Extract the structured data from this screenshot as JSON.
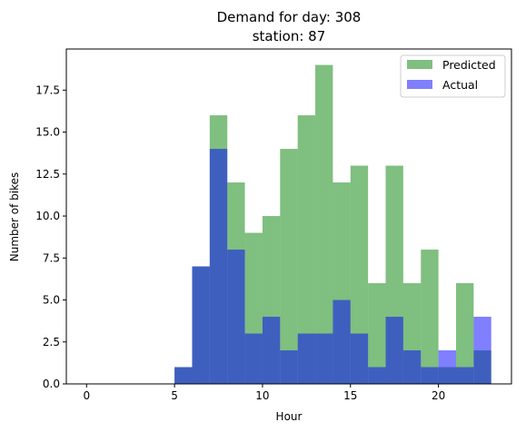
{
  "chart_data": {
    "type": "bar",
    "title_lines": [
      "Demand for day: 308",
      "station: 87"
    ],
    "xlabel": "Hour",
    "ylabel": "Number of bikes",
    "xlim": [
      -1.15,
      24.15
    ],
    "ylim": [
      0,
      19.95
    ],
    "xticks": [
      0,
      5,
      10,
      15,
      20
    ],
    "yticks": [
      0.0,
      2.5,
      5.0,
      7.5,
      10.0,
      12.5,
      15.0,
      17.5
    ],
    "bin_edges": [
      5,
      6,
      7,
      8,
      9,
      10,
      11,
      12,
      13,
      14,
      15,
      16,
      17,
      18,
      19,
      20,
      21,
      22,
      23
    ],
    "legend_position": "top-right",
    "grid": false,
    "series": [
      {
        "name": "Predicted",
        "color": "#008000",
        "alpha": 0.5,
        "values": [
          1,
          7,
          16,
          12,
          9,
          10,
          14,
          16,
          19,
          12,
          13,
          6,
          13,
          6,
          8,
          1,
          6,
          2
        ]
      },
      {
        "name": "Actual",
        "color": "#0000ff",
        "alpha": 0.5,
        "values": [
          1,
          7,
          14,
          8,
          3,
          4,
          2,
          3,
          3,
          5,
          3,
          1,
          4,
          2,
          1,
          2,
          1,
          4
        ]
      }
    ]
  }
}
